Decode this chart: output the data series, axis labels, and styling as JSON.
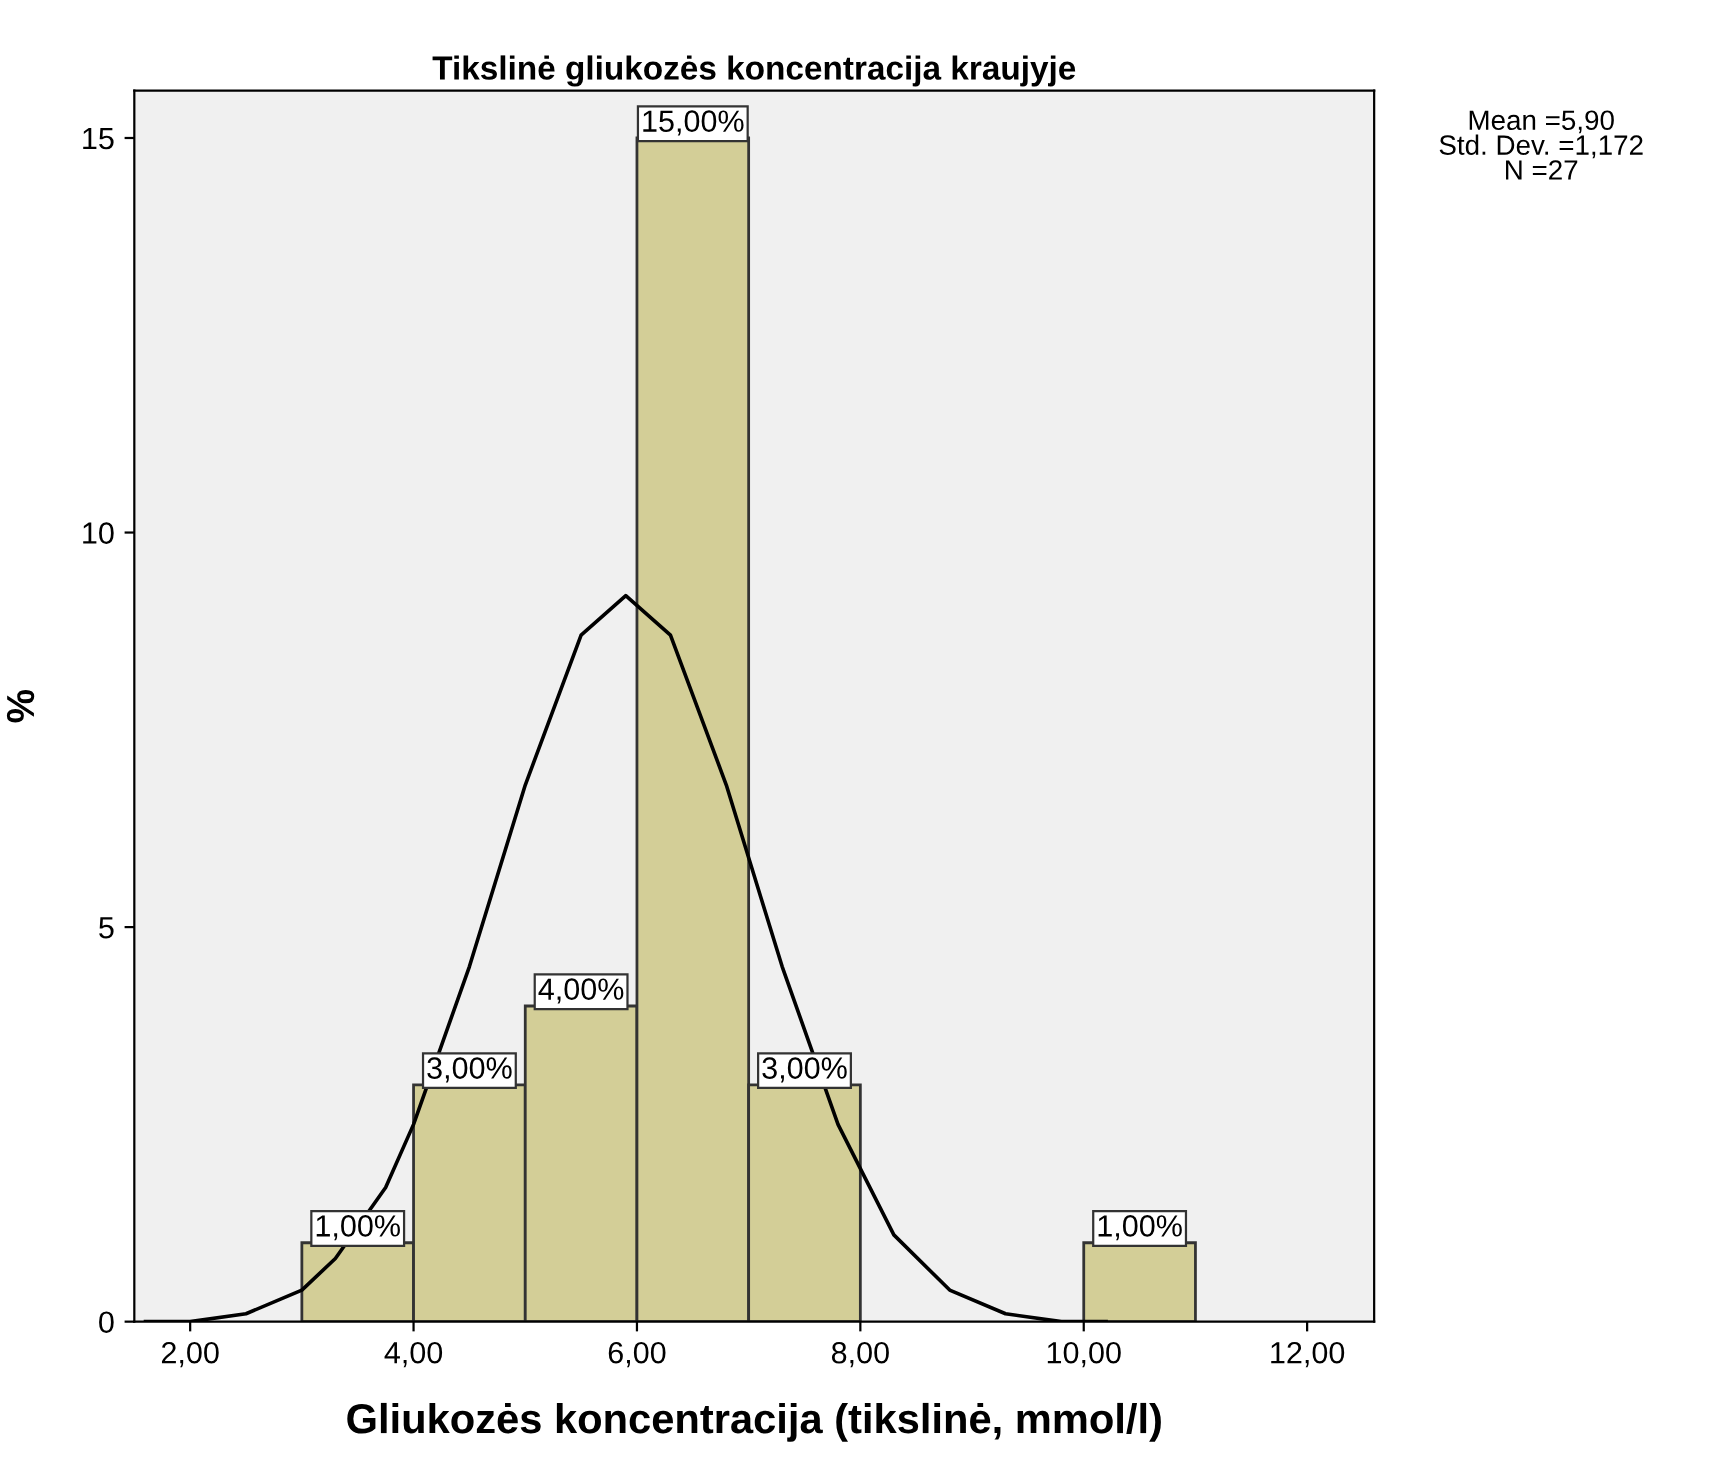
{
  "chart_data": {
    "type": "histogram",
    "title": "Tikslinė gliukozės koncentracija kraujyje",
    "xlabel": "Gliukozės koncentracija (tikslinė, mmol/l)",
    "ylabel": "%",
    "bins": [
      3,
      4,
      5,
      6,
      7,
      8,
      9,
      10,
      11
    ],
    "values": [
      1,
      3,
      4,
      15,
      3,
      0,
      0,
      1
    ],
    "value_labels": [
      "1,00%",
      "3,00%",
      "4,00%",
      "15,00%",
      "3,00%",
      null,
      null,
      "1,00%"
    ],
    "color": "#d3ce97",
    "series": [
      {
        "type": "line",
        "color": "#000000",
        "x": [
          1.6,
          2.0,
          2.5,
          3.0,
          3.3,
          3.75,
          4.0,
          4.5,
          5.0,
          5.5,
          5.9,
          6.3,
          6.8,
          7.3,
          7.8,
          8.3,
          8.8,
          9.3,
          9.8,
          10.2
        ],
        "values": [
          0.0,
          0.0,
          0.1,
          0.4,
          0.8,
          1.7,
          2.5,
          4.5,
          6.8,
          8.7,
          9.2,
          8.7,
          6.8,
          4.5,
          2.5,
          1.1,
          0.4,
          0.1,
          0.0,
          0.0
        ]
      }
    ],
    "xlim": [
      1.5,
      12.6
    ],
    "ylim": [
      0,
      15.6
    ],
    "xticks": [
      {
        "value": 2,
        "label": "2,00"
      },
      {
        "value": 4,
        "label": "4,00"
      },
      {
        "value": 6,
        "label": "6,00"
      },
      {
        "value": 8,
        "label": "8,00"
      },
      {
        "value": 10,
        "label": "10,00"
      },
      {
        "value": 12,
        "label": "12,00"
      }
    ],
    "yticks": [
      0,
      5,
      10,
      15
    ],
    "grid": false,
    "legend": false,
    "annotations": [
      "Mean =5,90\nStd. Dev. =1,172\nN =27"
    ]
  }
}
